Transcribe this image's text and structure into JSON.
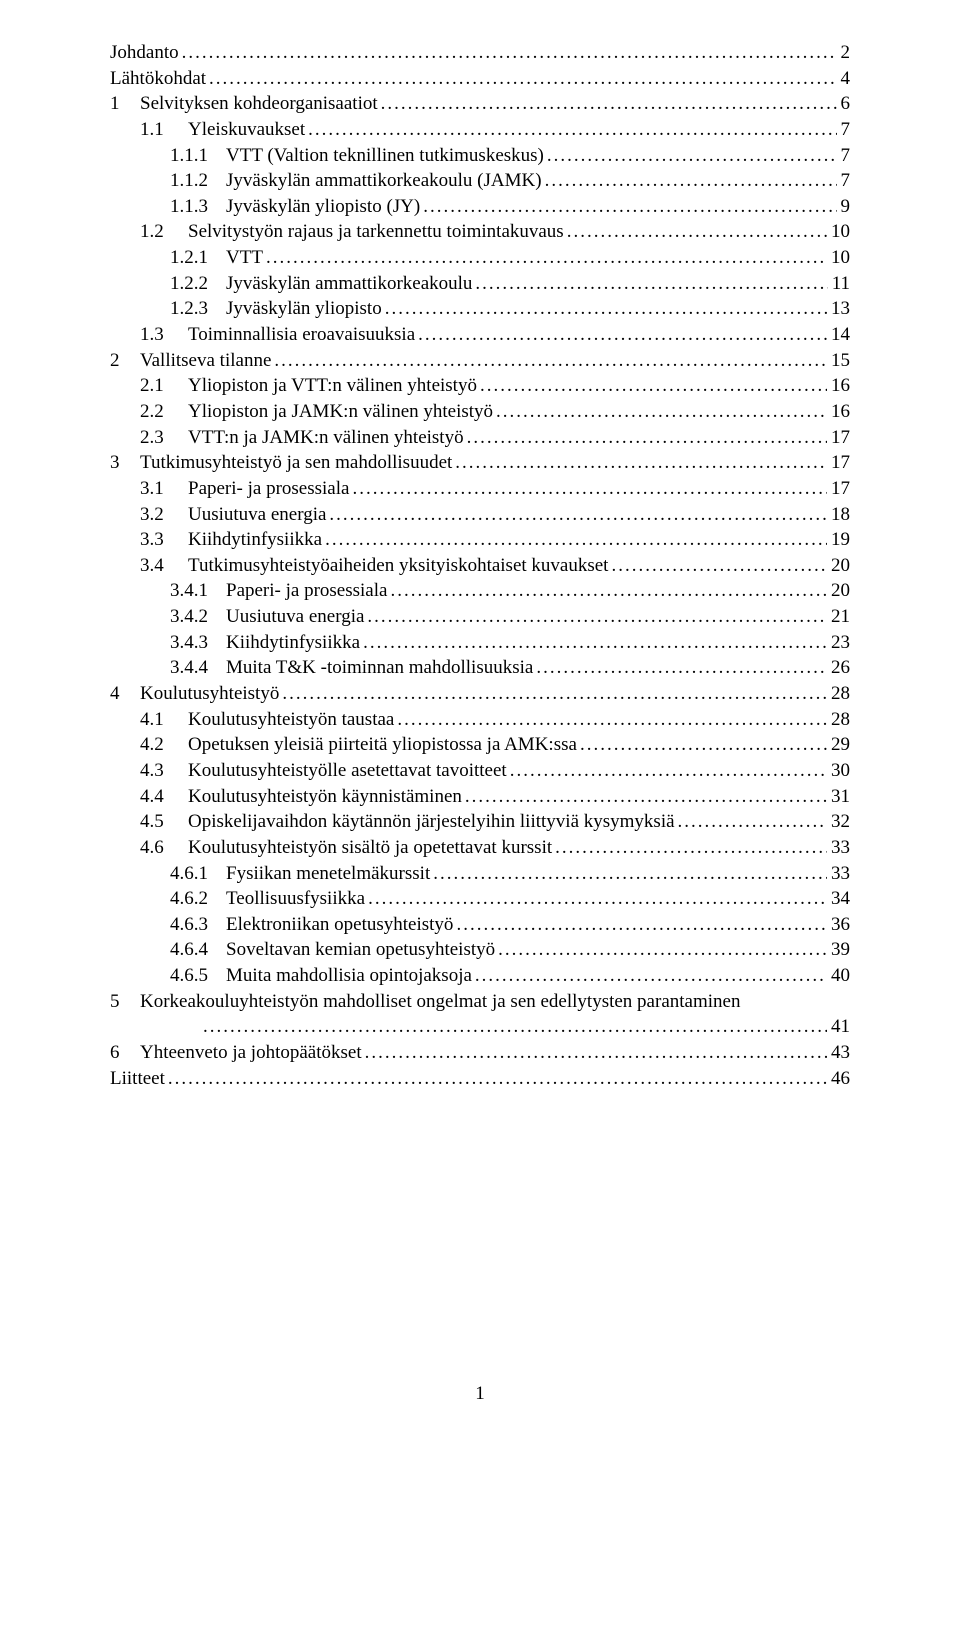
{
  "page_number": "1",
  "toc": [
    {
      "indent": 0,
      "num": "",
      "title": "Johdanto",
      "page": "2"
    },
    {
      "indent": 0,
      "num": "",
      "title": "Lähtökohdat",
      "page": "4"
    },
    {
      "indent": 0,
      "num": "1",
      "title": "Selvityksen kohdeorganisaatiot",
      "page": "6"
    },
    {
      "indent": 1,
      "num": "1.1",
      "title": "Yleiskuvaukset",
      "page": "7"
    },
    {
      "indent": 2,
      "num": "1.1.1",
      "title": "VTT (Valtion teknillinen tutkimuskeskus)",
      "page": "7"
    },
    {
      "indent": 2,
      "num": "1.1.2",
      "title": "Jyväskylän ammattikorkeakoulu (JAMK)",
      "page": "7"
    },
    {
      "indent": 2,
      "num": "1.1.3",
      "title": "Jyväskylän yliopisto (JY)",
      "page": "9"
    },
    {
      "indent": 1,
      "num": "1.2",
      "title": "Selvitystyön rajaus ja tarkennettu toimintakuvaus",
      "page": "10"
    },
    {
      "indent": 2,
      "num": "1.2.1",
      "title": "VTT",
      "page": "10"
    },
    {
      "indent": 2,
      "num": "1.2.2",
      "title": "Jyväskylän ammattikorkeakoulu",
      "page": "11"
    },
    {
      "indent": 2,
      "num": "1.2.3",
      "title": "Jyväskylän yliopisto",
      "page": "13"
    },
    {
      "indent": 1,
      "num": "1.3",
      "title": "Toiminnallisia eroavaisuuksia",
      "page": "14"
    },
    {
      "indent": 0,
      "num": "2",
      "title": "Vallitseva tilanne",
      "page": "15"
    },
    {
      "indent": 1,
      "num": "2.1",
      "title": "Yliopiston ja VTT:n välinen yhteistyö",
      "page": "16"
    },
    {
      "indent": 1,
      "num": "2.2",
      "title": "Yliopiston ja JAMK:n välinen yhteistyö",
      "page": "16"
    },
    {
      "indent": 1,
      "num": "2.3",
      "title": "VTT:n ja JAMK:n välinen yhteistyö",
      "page": "17"
    },
    {
      "indent": 0,
      "num": "3",
      "title": "Tutkimusyhteistyö ja sen mahdollisuudet",
      "page": "17"
    },
    {
      "indent": 1,
      "num": "3.1",
      "title": "Paperi- ja prosessiala",
      "page": "17"
    },
    {
      "indent": 1,
      "num": "3.2",
      "title": "Uusiutuva energia",
      "page": "18"
    },
    {
      "indent": 1,
      "num": "3.3",
      "title": "Kiihdytinfysiikka",
      "page": "19"
    },
    {
      "indent": 1,
      "num": "3.4",
      "title": "Tutkimusyhteistyöaiheiden yksityiskohtaiset kuvaukset",
      "page": "20"
    },
    {
      "indent": 2,
      "num": "3.4.1",
      "title": "Paperi- ja prosessiala",
      "page": "20"
    },
    {
      "indent": 2,
      "num": "3.4.2",
      "title": "Uusiutuva energia",
      "page": "21"
    },
    {
      "indent": 2,
      "num": "3.4.3",
      "title": "Kiihdytinfysiikka",
      "page": "23"
    },
    {
      "indent": 2,
      "num": "3.4.4",
      "title": "Muita T&K -toiminnan mahdollisuuksia",
      "page": "26"
    },
    {
      "indent": 0,
      "num": "4",
      "title": "Koulutusyhteistyö",
      "page": "28"
    },
    {
      "indent": 1,
      "num": "4.1",
      "title": "Koulutusyhteistyön taustaa",
      "page": "28"
    },
    {
      "indent": 1,
      "num": "4.2",
      "title": "Opetuksen yleisiä piirteitä yliopistossa ja AMK:ssa",
      "page": "29"
    },
    {
      "indent": 1,
      "num": "4.3",
      "title": "Koulutusyhteistyölle asetettavat tavoitteet",
      "page": "30"
    },
    {
      "indent": 1,
      "num": "4.4",
      "title": "Koulutusyhteistyön käynnistäminen",
      "page": "31"
    },
    {
      "indent": 1,
      "num": "4.5",
      "title": "Opiskelijavaihdon käytännön järjestelyihin liittyviä kysymyksiä",
      "page": "32"
    },
    {
      "indent": 1,
      "num": "4.6",
      "title": "Koulutusyhteistyön sisältö ja opetettavat kurssit",
      "page": "33"
    },
    {
      "indent": 2,
      "num": "4.6.1",
      "title": "Fysiikan menetelmäkurssit",
      "page": "33"
    },
    {
      "indent": 2,
      "num": "4.6.2",
      "title": "Teollisuusfysiikka",
      "page": "34"
    },
    {
      "indent": 2,
      "num": "4.6.3",
      "title": "Elektroniikan opetusyhteistyö",
      "page": "36"
    },
    {
      "indent": 2,
      "num": "4.6.4",
      "title": "Soveltavan kemian opetusyhteistyö",
      "page": "39"
    },
    {
      "indent": 2,
      "num": "4.6.5",
      "title": "Muita mahdollisia opintojaksoja",
      "page": "40"
    },
    {
      "indent": 0,
      "num": "5",
      "title": "Korkeakouluyhteistyön mahdolliset ongelmat  ja sen edellytysten parantaminen",
      "page": "",
      "wrap": true
    },
    {
      "indent": "cont",
      "num": "",
      "title": "",
      "page": "41"
    },
    {
      "indent": 0,
      "num": "6",
      "title": "Yhteenveto ja johtopäätökset",
      "page": "43"
    },
    {
      "indent": 0,
      "num": "",
      "title": "Liitteet",
      "page": "46"
    }
  ]
}
